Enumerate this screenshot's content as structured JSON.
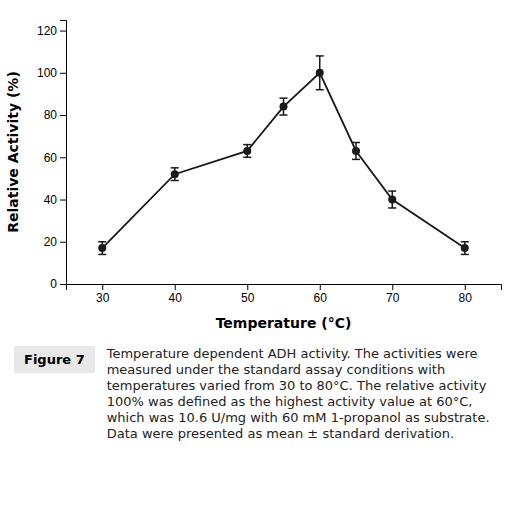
{
  "chart_data": {
    "type": "line",
    "x": [
      30,
      40,
      50,
      55,
      60,
      65,
      70,
      80
    ],
    "values": [
      17,
      52,
      63,
      84,
      100,
      63,
      40,
      17
    ],
    "errors": [
      3,
      3,
      3,
      4,
      8,
      4,
      4,
      3
    ],
    "x_label": "Temperature (°C)",
    "y_label": "Relative Activity (%)",
    "xlim": [
      25,
      85
    ],
    "ylim": [
      0,
      125
    ],
    "xticks": [
      30,
      40,
      50,
      60,
      70,
      80
    ],
    "yticks": [
      0,
      20,
      40,
      60,
      80,
      100,
      120
    ],
    "color": "#1a1a1a",
    "marker": "circle",
    "grid": false,
    "annotations": [
      "Figure 7",
      "Temperature dependent ADH activity. The activities were measured under the standard assay conditions with temperatures varied from 30 to 80°C. The relative activity 100% was defined as the highest activity value at 60°C, which was 10.6 U/mg with 60 mM 1-propanol as substrate. Data were presented as mean ± standard derivation."
    ]
  }
}
